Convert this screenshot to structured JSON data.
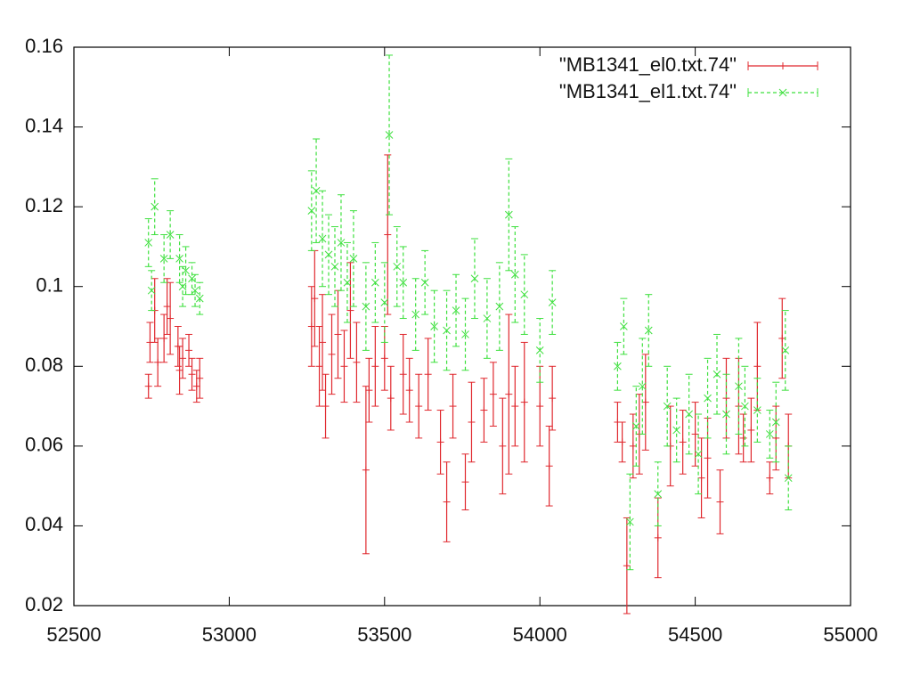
{
  "chart_data": {
    "type": "errorbar",
    "xlim": [
      52500,
      55000
    ],
    "xticks": [
      52500,
      53000,
      53500,
      54000,
      54500,
      55000
    ],
    "ylim": [
      0.02,
      0.16
    ],
    "yticks": [
      0.02,
      0.04,
      0.06,
      0.08,
      0.1,
      0.12,
      0.14,
      0.16
    ],
    "legend": "upper right",
    "series": [
      {
        "name": "\"MB1341_el0.txt.74\"",
        "color": "#e0282e",
        "marker": "plus",
        "dashed": false,
        "x": [
          52740,
          52745,
          52760,
          52770,
          52790,
          52800,
          52810,
          52835,
          52840,
          52850,
          52870,
          52880,
          52895,
          52905,
          53265,
          53275,
          53290,
          53300,
          53310,
          53330,
          53350,
          53370,
          53390,
          53410,
          53440,
          53450,
          53470,
          53500,
          53510,
          53520,
          53560,
          53580,
          53610,
          53640,
          53680,
          53700,
          53720,
          53760,
          53780,
          53820,
          53850,
          53880,
          53900,
          53920,
          53950,
          54000,
          54030,
          54040,
          54250,
          54265,
          54280,
          54300,
          54320,
          54340,
          54380,
          54420,
          54460,
          54500,
          54520,
          54540,
          54580,
          54600,
          54640,
          54655,
          54680,
          54700,
          54740,
          54760,
          54780,
          54800
        ],
        "values": [
          0.075,
          0.086,
          0.094,
          0.081,
          0.087,
          0.095,
          0.092,
          0.085,
          0.079,
          0.082,
          0.084,
          0.078,
          0.075,
          0.077,
          0.09,
          0.097,
          0.08,
          0.086,
          0.07,
          0.083,
          0.088,
          0.08,
          0.094,
          0.081,
          0.054,
          0.074,
          0.08,
          0.082,
          0.113,
          0.072,
          0.078,
          0.074,
          0.07,
          0.078,
          0.061,
          0.046,
          0.07,
          0.051,
          0.066,
          0.069,
          0.073,
          0.06,
          0.073,
          0.07,
          0.071,
          0.07,
          0.055,
          0.072,
          0.066,
          0.061,
          0.03,
          0.06,
          0.063,
          0.071,
          0.037,
          0.06,
          0.061,
          0.063,
          0.052,
          0.057,
          0.046,
          0.072,
          0.07,
          0.062,
          0.064,
          0.08,
          0.052,
          0.062,
          0.087,
          0.06
        ],
        "errors": [
          0.003,
          0.005,
          0.008,
          0.006,
          0.006,
          0.007,
          0.009,
          0.005,
          0.006,
          0.005,
          0.004,
          0.004,
          0.004,
          0.005,
          0.01,
          0.012,
          0.01,
          0.012,
          0.008,
          0.01,
          0.011,
          0.009,
          0.012,
          0.01,
          0.021,
          0.008,
          0.01,
          0.008,
          0.02,
          0.008,
          0.01,
          0.008,
          0.008,
          0.009,
          0.008,
          0.01,
          0.008,
          0.007,
          0.01,
          0.008,
          0.008,
          0.012,
          0.02,
          0.01,
          0.015,
          0.01,
          0.01,
          0.008,
          0.005,
          0.005,
          0.012,
          0.008,
          0.01,
          0.012,
          0.01,
          0.01,
          0.008,
          0.008,
          0.01,
          0.01,
          0.008,
          0.01,
          0.012,
          0.006,
          0.008,
          0.011,
          0.004,
          0.008,
          0.01,
          0.008
        ]
      },
      {
        "name": "\"MB1341_el1.txt.74\"",
        "color": "#3ee03e",
        "marker": "cross",
        "dashed": true,
        "x": [
          52740,
          52750,
          52760,
          52790,
          52810,
          52840,
          52850,
          52860,
          52880,
          52890,
          52905,
          53265,
          53280,
          53300,
          53320,
          53340,
          53360,
          53380,
          53400,
          53440,
          53470,
          53500,
          53515,
          53540,
          53560,
          53600,
          53630,
          53660,
          53700,
          53730,
          53760,
          53790,
          53830,
          53870,
          53900,
          53920,
          53950,
          54000,
          54040,
          54250,
          54270,
          54290,
          54310,
          54330,
          54350,
          54380,
          54410,
          54440,
          54480,
          54510,
          54540,
          54570,
          54600,
          54640,
          54660,
          54700,
          54740,
          54760,
          54790,
          54800
        ],
        "values": [
          0.111,
          0.099,
          0.12,
          0.107,
          0.113,
          0.107,
          0.1,
          0.104,
          0.102,
          0.099,
          0.097,
          0.119,
          0.124,
          0.112,
          0.108,
          0.105,
          0.111,
          0.101,
          0.107,
          0.095,
          0.101,
          0.096,
          0.138,
          0.105,
          0.101,
          0.093,
          0.101,
          0.09,
          0.089,
          0.094,
          0.088,
          0.102,
          0.092,
          0.095,
          0.118,
          0.103,
          0.098,
          0.084,
          0.096,
          0.08,
          0.09,
          0.041,
          0.065,
          0.075,
          0.089,
          0.048,
          0.07,
          0.064,
          0.068,
          0.058,
          0.072,
          0.078,
          0.068,
          0.075,
          0.07,
          0.069,
          0.063,
          0.066,
          0.084,
          0.052
        ],
        "errors": [
          0.006,
          0.005,
          0.007,
          0.006,
          0.006,
          0.006,
          0.005,
          0.006,
          0.004,
          0.004,
          0.004,
          0.01,
          0.013,
          0.012,
          0.01,
          0.01,
          0.012,
          0.01,
          0.012,
          0.011,
          0.01,
          0.01,
          0.02,
          0.01,
          0.009,
          0.009,
          0.008,
          0.009,
          0.01,
          0.009,
          0.009,
          0.01,
          0.01,
          0.011,
          0.014,
          0.012,
          0.01,
          0.008,
          0.008,
          0.006,
          0.007,
          0.012,
          0.01,
          0.012,
          0.009,
          0.008,
          0.01,
          0.008,
          0.01,
          0.01,
          0.01,
          0.01,
          0.01,
          0.012,
          0.01,
          0.008,
          0.006,
          0.01,
          0.01,
          0.008
        ]
      }
    ]
  }
}
